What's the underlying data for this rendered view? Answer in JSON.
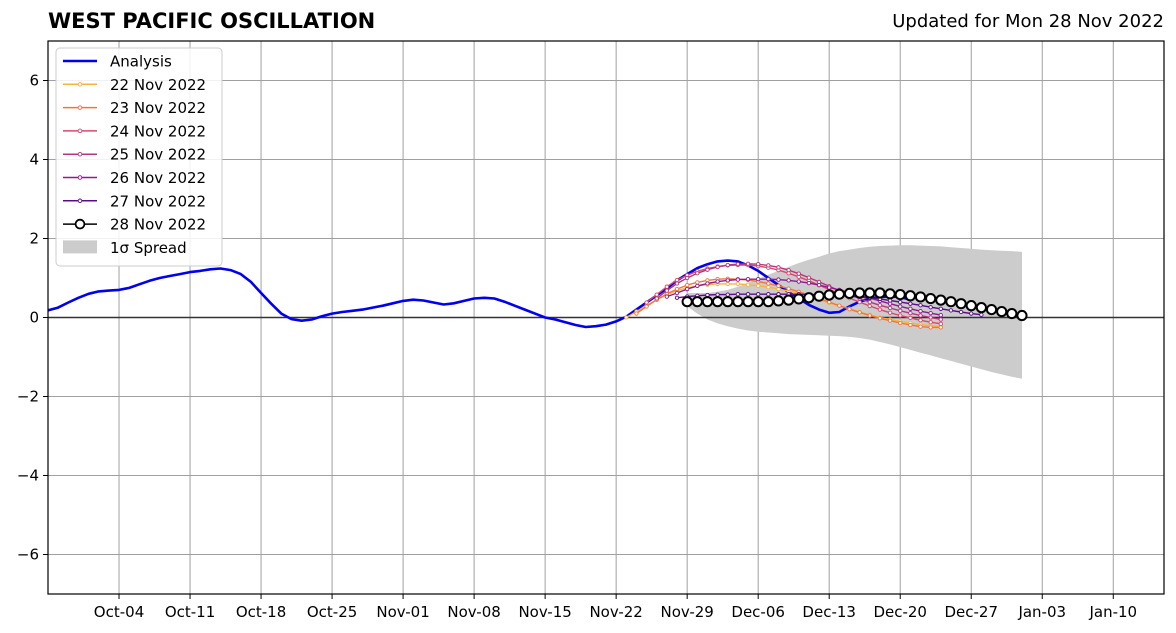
{
  "chart_data": {
    "type": "line",
    "title": "WEST PACIFIC OSCILLATION",
    "subtitle": "Updated for Mon 28 Nov 2022",
    "xlabel": "",
    "ylabel": "",
    "xlim": [
      "2022-09-27",
      "2023-01-15"
    ],
    "ylim": [
      -7,
      7
    ],
    "grid": true,
    "legend_position": "top-left",
    "x_ticks": [
      "2022-10-04",
      "2022-10-11",
      "2022-10-18",
      "2022-10-25",
      "2022-11-01",
      "2022-11-08",
      "2022-11-15",
      "2022-11-22",
      "2022-11-29",
      "2022-12-06",
      "2022-12-13",
      "2022-12-20",
      "2022-12-27",
      "2023-01-03",
      "2023-01-10"
    ],
    "x_tick_labels": [
      "Oct-04",
      "Oct-11",
      "Oct-18",
      "Oct-25",
      "Nov-01",
      "Nov-08",
      "Nov-15",
      "Nov-22",
      "Nov-29",
      "Dec-06",
      "Dec-13",
      "Dec-20",
      "Dec-27",
      "Jan-03",
      "Jan-10"
    ],
    "y_ticks": [
      -6,
      -4,
      -2,
      0,
      2,
      4,
      6
    ],
    "y_tick_labels": [
      "−6",
      "−4",
      "−2",
      "0",
      "2",
      "4",
      "6"
    ],
    "analysis": {
      "name": "Analysis",
      "color": "#0000ee",
      "start": "2022-09-27",
      "values": [
        0.18,
        0.25,
        0.38,
        0.5,
        0.6,
        0.66,
        0.68,
        0.7,
        0.75,
        0.84,
        0.93,
        1.0,
        1.05,
        1.1,
        1.15,
        1.18,
        1.22,
        1.24,
        1.2,
        1.1,
        0.9,
        0.62,
        0.35,
        0.1,
        -0.04,
        -0.08,
        -0.05,
        0.03,
        0.1,
        0.14,
        0.17,
        0.2,
        0.25,
        0.3,
        0.36,
        0.42,
        0.45,
        0.43,
        0.38,
        0.33,
        0.36,
        0.42,
        0.48,
        0.5,
        0.48,
        0.4,
        0.3,
        0.2,
        0.1,
        0.0,
        -0.05,
        -0.12,
        -0.19,
        -0.24,
        -0.22,
        -0.18,
        -0.1,
        0.02,
        0.2,
        0.38,
        0.56,
        0.74,
        0.94,
        1.1,
        1.25,
        1.35,
        1.42,
        1.44,
        1.42,
        1.32,
        1.18,
        1.0,
        0.82,
        0.64,
        0.48,
        0.32,
        0.2,
        0.12,
        0.14,
        0.28,
        0.4,
        0.48,
        0.52,
        0.53,
        0.52,
        0.45
      ]
    },
    "series": [
      {
        "name": "22 Nov 2022",
        "color": "#fcb13b",
        "start": "2022-11-23",
        "values": [
          0.0,
          0.15,
          0.3,
          0.45,
          0.58,
          0.68,
          0.75,
          0.8,
          0.83,
          0.85,
          0.85,
          0.85,
          0.83,
          0.8,
          0.77,
          0.72,
          0.67,
          0.6,
          0.53,
          0.45,
          0.37,
          0.3,
          0.22,
          0.14,
          0.07,
          0.0,
          -0.05,
          -0.1,
          -0.14,
          -0.18,
          -0.21,
          -0.23
        ]
      },
      {
        "name": "23 Nov 2022",
        "color": "#f0743d",
        "start": "2022-11-24",
        "values": [
          0.1,
          0.28,
          0.45,
          0.6,
          0.72,
          0.82,
          0.89,
          0.94,
          0.97,
          0.98,
          0.97,
          0.95,
          0.91,
          0.86,
          0.8,
          0.73,
          0.65,
          0.57,
          0.48,
          0.39,
          0.3,
          0.21,
          0.13,
          0.05,
          -0.02,
          -0.08,
          -0.14,
          -0.19,
          -0.23,
          -0.25,
          -0.25
        ]
      },
      {
        "name": "24 Nov 2022",
        "color": "#d9486a",
        "start": "2022-11-25",
        "values": [
          0.38,
          0.58,
          0.78,
          0.95,
          1.07,
          1.17,
          1.24,
          1.29,
          1.32,
          1.33,
          1.33,
          1.3,
          1.26,
          1.2,
          1.12,
          1.03,
          0.93,
          0.82,
          0.71,
          0.6,
          0.49,
          0.39,
          0.29,
          0.2,
          0.12,
          0.05,
          -0.01,
          -0.07,
          -0.12,
          -0.16
        ]
      },
      {
        "name": "25 Nov 2022",
        "color": "#b5367a",
        "start": "2022-11-26",
        "values": [
          0.48,
          0.68,
          0.86,
          1.0,
          1.12,
          1.21,
          1.28,
          1.33,
          1.35,
          1.36,
          1.35,
          1.32,
          1.27,
          1.2,
          1.11,
          1.01,
          0.9,
          0.79,
          0.68,
          0.58,
          0.48,
          0.39,
          0.31,
          0.24,
          0.17,
          0.11,
          0.05,
          0.0,
          -0.05
        ]
      },
      {
        "name": "26 Nov 2022",
        "color": "#8e1b8e",
        "start": "2022-11-27",
        "values": [
          0.53,
          0.62,
          0.72,
          0.8,
          0.86,
          0.91,
          0.94,
          0.96,
          0.97,
          0.97,
          0.97,
          0.96,
          0.94,
          0.91,
          0.87,
          0.82,
          0.76,
          0.7,
          0.63,
          0.56,
          0.49,
          0.42,
          0.35,
          0.28,
          0.22,
          0.16,
          0.11,
          0.06
        ]
      },
      {
        "name": "27 Nov 2022",
        "color": "#5a0a8c",
        "start": "2022-11-28",
        "values": [
          0.5,
          0.53,
          0.55,
          0.57,
          0.58,
          0.58,
          0.59,
          0.59,
          0.59,
          0.59,
          0.59,
          0.59,
          0.59,
          0.58,
          0.58,
          0.57,
          0.56,
          0.54,
          0.52,
          0.5,
          0.47,
          0.43,
          0.39,
          0.35,
          0.31,
          0.26,
          0.22,
          0.18,
          0.14,
          0.1,
          0.07
        ]
      },
      {
        "name": "28 Nov 2022",
        "color": "#000000",
        "marker": "open-circle",
        "start": "2022-11-29",
        "values": [
          0.4,
          0.4,
          0.4,
          0.4,
          0.4,
          0.4,
          0.4,
          0.4,
          0.4,
          0.42,
          0.44,
          0.47,
          0.5,
          0.54,
          0.57,
          0.59,
          0.61,
          0.62,
          0.62,
          0.62,
          0.6,
          0.58,
          0.55,
          0.52,
          0.48,
          0.44,
          0.4,
          0.35,
          0.3,
          0.25,
          0.2,
          0.15,
          0.1,
          0.05
        ]
      }
    ],
    "spread": {
      "name": "1σ Spread",
      "color": "#cccccc",
      "start": "2022-11-29",
      "upper": [
        0.62,
        0.62,
        0.62,
        0.65,
        0.7,
        0.78,
        0.88,
        0.98,
        1.08,
        1.18,
        1.28,
        1.38,
        1.46,
        1.54,
        1.62,
        1.68,
        1.72,
        1.76,
        1.79,
        1.81,
        1.82,
        1.83,
        1.83,
        1.82,
        1.81,
        1.8,
        1.78,
        1.76,
        1.74,
        1.72,
        1.7,
        1.69,
        1.68,
        1.66
      ],
      "lower": [
        0.28,
        0.1,
        -0.05,
        -0.15,
        -0.22,
        -0.28,
        -0.33,
        -0.36,
        -0.38,
        -0.4,
        -0.42,
        -0.43,
        -0.44,
        -0.45,
        -0.46,
        -0.47,
        -0.49,
        -0.52,
        -0.56,
        -0.62,
        -0.68,
        -0.75,
        -0.82,
        -0.89,
        -0.96,
        -1.03,
        -1.1,
        -1.17,
        -1.24,
        -1.31,
        -1.38,
        -1.44,
        -1.5,
        -1.55
      ]
    }
  }
}
